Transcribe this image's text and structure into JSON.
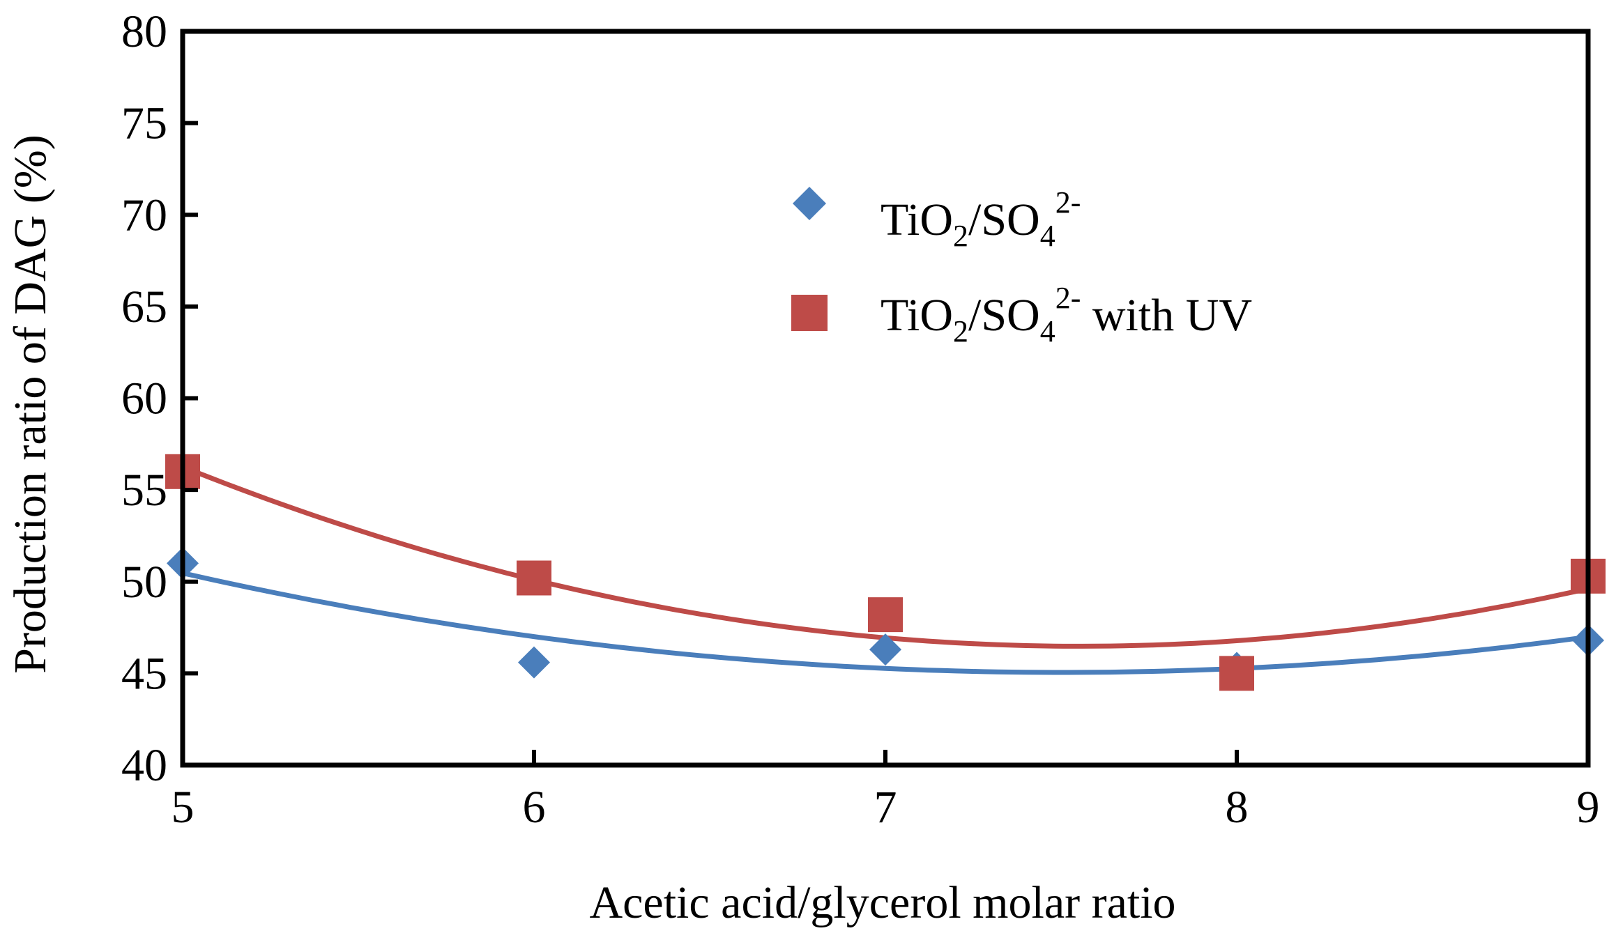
{
  "chart_data": {
    "type": "scatter",
    "title": "",
    "xlabel": "Acetic acid/glycerol molar ratio",
    "ylabel": "Production ratio of  DAG (%)",
    "xlim": [
      5,
      9
    ],
    "ylim": [
      40,
      80
    ],
    "xticks": [
      5,
      6,
      7,
      8,
      9
    ],
    "yticks": [
      40,
      45,
      50,
      55,
      60,
      65,
      70,
      75,
      80
    ],
    "grid": false,
    "legend_position": "top-center",
    "series": [
      {
        "name": "TiO2/SO4 2-",
        "legend_label": {
          "base": "TiO",
          "sub1": "2",
          "mid": "/SO",
          "sub2": "4",
          "sup": "2-",
          "tail": ""
        },
        "marker": "diamond",
        "color": "#4a7ebb",
        "x": [
          5,
          6,
          7,
          8,
          9
        ],
        "y": [
          51.0,
          45.6,
          46.3,
          45.3,
          46.8
        ],
        "trendline": {
          "type": "polynomial",
          "order": 2
        }
      },
      {
        "name": "TiO2/SO4 2- with UV",
        "legend_label": {
          "base": "TiO",
          "sub1": "2",
          "mid": "/SO",
          "sub2": "4",
          "sup": "2-",
          "tail": " with UV"
        },
        "marker": "square",
        "color": "#be4b48",
        "x": [
          5,
          6,
          7,
          8,
          9
        ],
        "y": [
          56.0,
          50.2,
          48.2,
          45.0,
          50.3
        ],
        "trendline": {
          "type": "polynomial",
          "order": 2
        }
      }
    ]
  }
}
